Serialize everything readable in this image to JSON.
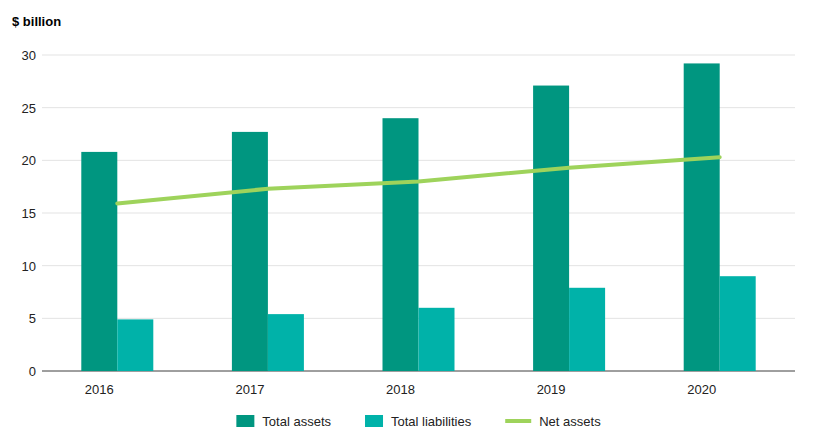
{
  "chart_data": {
    "type": "bar",
    "y_label": "$ billion",
    "categories": [
      "2016",
      "2017",
      "2018",
      "2019",
      "2020"
    ],
    "series": [
      {
        "name": "Total assets",
        "type": "bar",
        "color": "#009680",
        "values": [
          20.8,
          22.7,
          24.0,
          27.1,
          29.2
        ]
      },
      {
        "name": "Total liabilities",
        "type": "bar",
        "color": "#00b2a9",
        "values": [
          4.9,
          5.4,
          6.0,
          7.9,
          9.0
        ]
      },
      {
        "name": "Net assets",
        "type": "line",
        "color": "#9ed35b",
        "values": [
          15.9,
          17.3,
          18.0,
          19.3,
          20.3
        ]
      }
    ],
    "ylim": [
      0,
      30
    ],
    "yticks": [
      0,
      5,
      10,
      15,
      20,
      25,
      30
    ],
    "grid": true,
    "legend": "bottom"
  }
}
